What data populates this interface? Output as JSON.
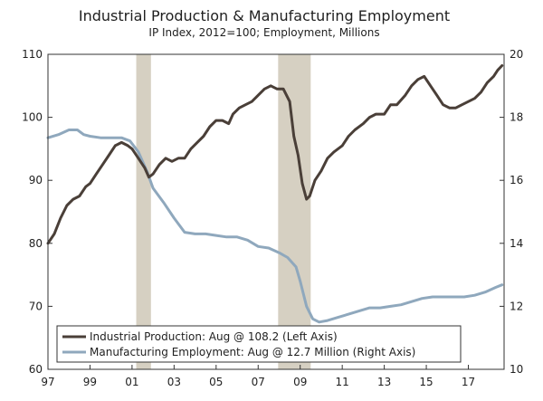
{
  "chart_data": {
    "type": "line",
    "title": "Industrial Production & Manufacturing Employment",
    "subtitle": "IP Index, 2012=100; Employment, Millions",
    "x_range": [
      1997,
      2018.7
    ],
    "x_ticks": [
      1997,
      1999,
      2001,
      2003,
      2005,
      2007,
      2009,
      2011,
      2013,
      2015,
      2017
    ],
    "x_tick_labels": [
      "97",
      "99",
      "01",
      "03",
      "05",
      "07",
      "09",
      "11",
      "13",
      "15",
      "17"
    ],
    "y_left": {
      "range": [
        60,
        110
      ],
      "ticks": [
        60,
        70,
        80,
        90,
        100,
        110
      ],
      "tick_labels": [
        "60",
        "70",
        "80",
        "90",
        "100",
        "110"
      ]
    },
    "y_right": {
      "range": [
        10,
        20
      ],
      "ticks": [
        10,
        12,
        14,
        16,
        18,
        20
      ],
      "tick_labels": [
        "10",
        "12",
        "14",
        "16",
        "18",
        "20"
      ]
    },
    "recessions": [
      [
        2001.2,
        2001.9
      ],
      [
        2007.95,
        2009.5
      ]
    ],
    "legend_location": "bottom-left",
    "series": [
      {
        "name": "Industrial Production: Aug @ 108.2 (Left Axis)",
        "axis": "left",
        "color": "#4a3f38",
        "x": [
          1997.0,
          1997.3,
          1997.6,
          1997.9,
          1998.2,
          1998.5,
          1998.8,
          1999.0,
          1999.3,
          1999.6,
          1999.9,
          2000.2,
          2000.5,
          2000.8,
          2001.0,
          2001.3,
          2001.6,
          2001.8,
          2002.0,
          2002.3,
          2002.6,
          2002.9,
          2003.2,
          2003.5,
          2003.8,
          2004.1,
          2004.4,
          2004.7,
          2005.0,
          2005.3,
          2005.6,
          2005.8,
          2006.1,
          2006.4,
          2006.7,
          2007.0,
          2007.3,
          2007.6,
          2007.9,
          2008.2,
          2008.5,
          2008.7,
          2008.9,
          2009.1,
          2009.3,
          2009.45,
          2009.7,
          2010.0,
          2010.3,
          2010.6,
          2011.0,
          2011.3,
          2011.6,
          2012.0,
          2012.3,
          2012.6,
          2013.0,
          2013.3,
          2013.6,
          2014.0,
          2014.3,
          2014.6,
          2014.9,
          2015.2,
          2015.5,
          2015.8,
          2016.1,
          2016.4,
          2016.7,
          2017.0,
          2017.3,
          2017.6,
          2017.9,
          2018.2,
          2018.4,
          2018.6
        ],
        "values": [
          80,
          81.5,
          84,
          86,
          87,
          87.5,
          89,
          89.5,
          91,
          92.5,
          94,
          95.5,
          96,
          95.5,
          95,
          93.5,
          92,
          90.5,
          91,
          92.5,
          93.5,
          93,
          93.5,
          93.5,
          95,
          96,
          97,
          98.5,
          99.5,
          99.5,
          99,
          100.5,
          101.5,
          102,
          102.5,
          103.5,
          104.5,
          105,
          104.5,
          104.5,
          102.5,
          97,
          94,
          89.5,
          87,
          87.5,
          90,
          91.5,
          93.5,
          94.5,
          95.5,
          97,
          98,
          99,
          100,
          100.5,
          100.5,
          102,
          102,
          103.5,
          105,
          106,
          106.5,
          105,
          103.5,
          102,
          101.5,
          101.5,
          102,
          102.5,
          103,
          104,
          105.5,
          106.5,
          107.5,
          108.2
        ]
      },
      {
        "name": "Manufacturing Employment: Aug @ 12.7 Million (Right Axis)",
        "axis": "right",
        "color": "#8fa8bd",
        "x": [
          1997.0,
          1997.5,
          1998.0,
          1998.4,
          1998.7,
          1999.0,
          1999.5,
          2000.0,
          2000.5,
          2000.9,
          2001.3,
          2001.7,
          2002.0,
          2002.5,
          2003.0,
          2003.5,
          2004.0,
          2004.5,
          2005.0,
          2005.5,
          2006.0,
          2006.5,
          2007.0,
          2007.5,
          2008.0,
          2008.4,
          2008.8,
          2009.0,
          2009.3,
          2009.6,
          2009.9,
          2010.3,
          2010.8,
          2011.3,
          2011.8,
          2012.3,
          2012.8,
          2013.3,
          2013.8,
          2014.3,
          2014.8,
          2015.3,
          2015.8,
          2016.3,
          2016.8,
          2017.3,
          2017.8,
          2018.3,
          2018.6
        ],
        "values": [
          17.35,
          17.45,
          17.6,
          17.6,
          17.45,
          17.4,
          17.35,
          17.35,
          17.35,
          17.25,
          16.9,
          16.3,
          15.75,
          15.3,
          14.8,
          14.35,
          14.3,
          14.3,
          14.25,
          14.2,
          14.2,
          14.1,
          13.9,
          13.85,
          13.7,
          13.55,
          13.25,
          12.8,
          12.0,
          11.6,
          11.5,
          11.55,
          11.65,
          11.75,
          11.85,
          11.95,
          11.95,
          12.0,
          12.05,
          12.15,
          12.25,
          12.3,
          12.3,
          12.3,
          12.3,
          12.35,
          12.45,
          12.6,
          12.68
        ]
      }
    ]
  }
}
